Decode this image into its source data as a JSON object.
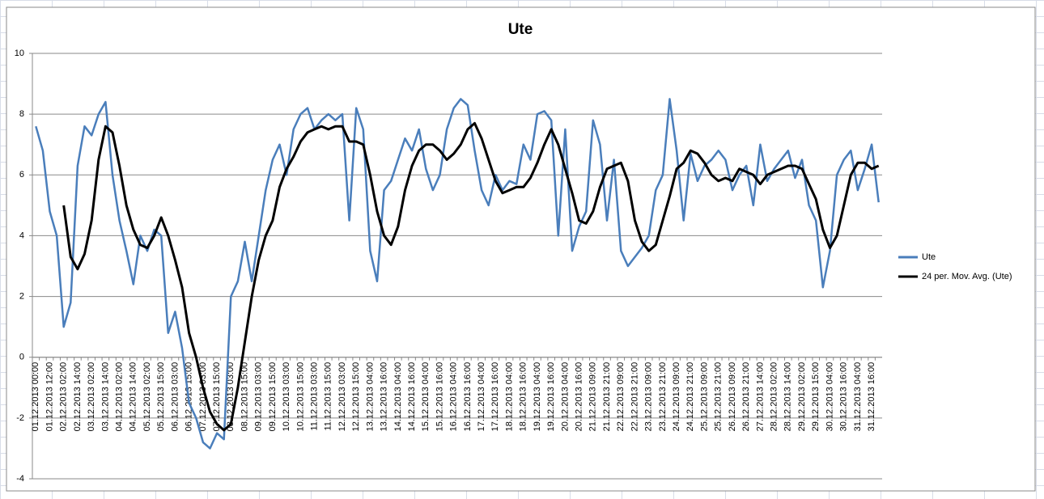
{
  "chart_data": {
    "type": "line",
    "title": "Ute",
    "categories": [
      "01.12.2013 00:00",
      null,
      "01.12.2013 12:00",
      null,
      "02.12.2013 02:00",
      null,
      "02.12.2013 14:00",
      null,
      "03.12.2013 02:00",
      null,
      "03.12.2013 14:00",
      null,
      "04.12.2013 02:00",
      null,
      "04.12.2013 14:00",
      null,
      "05.12.2013 02:00",
      null,
      "05.12.2013 15:00",
      null,
      "06.12.2013 03:00",
      null,
      "06.12.2013 15:00",
      null,
      "07.12.2013 03:00",
      null,
      "07.12.2013 15:00",
      null,
      "08.12.2013 03:00",
      null,
      "08.12.2013 15:00",
      null,
      "09.12.2013 03:00",
      null,
      "09.12.2013 15:00",
      null,
      "10.12.2013 03:00",
      null,
      "10.12.2013 15:00",
      null,
      "11.12.2013 03:00",
      null,
      "11.12.2013 15:00",
      null,
      "12.12.2013 03:00",
      null,
      "12.12.2013 15:00",
      null,
      "13.12.2013 04:00",
      null,
      "13.12.2013 16:00",
      null,
      "14.12.2013 04:00",
      null,
      "14.12.2013 16:00",
      null,
      "15.12.2013 04:00",
      null,
      "15.12.2013 16:00",
      null,
      "16.12.2013 04:00",
      null,
      "16.12.2013 16:00",
      null,
      "17.12.2013 04:00",
      null,
      "17.12.2013 16:00",
      null,
      "18.12.2013 04:00",
      null,
      "18.12.2013 16:00",
      null,
      "19.12.2013 04:00",
      null,
      "19.12.2013 16:00",
      null,
      "20.12.2013 04:00",
      null,
      "20.12.2013 16:00",
      null,
      "21.12.2013 09:00",
      null,
      "21.12.2013 21:00",
      null,
      "22.12.2013 09:00",
      null,
      "22.12.2013 21:00",
      null,
      "23.12.2013 09:00",
      null,
      "23.12.2013 21:00",
      null,
      "24.12.2013 09:00",
      null,
      "24.12.2013 21:00",
      null,
      "25.12.2013 09:00",
      null,
      "25.12.2013 21:00",
      null,
      "26.12.2013 09:00",
      null,
      "26.12.2013 21:00",
      null,
      "27.12.2013 14:00",
      null,
      "28.12.2013 02:00",
      null,
      "28.12.2013 14:00",
      null,
      "29.12.2013 02:00",
      null,
      "29.12.2013 15:00",
      null,
      "30.12.2013 04:00",
      null,
      "30.12.2013 16:00",
      null,
      "31.12.2013 04:00",
      null,
      "31.12.2013 16:00",
      null
    ],
    "series": [
      {
        "name": "Ute",
        "color": "#4a7ebb",
        "values": [
          7.6,
          6.8,
          4.8,
          4.0,
          1.0,
          1.8,
          6.3,
          7.6,
          7.3,
          8.0,
          8.4,
          6.0,
          4.5,
          3.5,
          2.4,
          4.0,
          3.5,
          4.2,
          4.0,
          0.8,
          1.5,
          0.3,
          -1.5,
          -2.0,
          -2.8,
          -3.0,
          -2.5,
          -2.7,
          2.0,
          2.5,
          3.8,
          2.5,
          4.0,
          5.5,
          6.5,
          7.0,
          6.0,
          7.5,
          8.0,
          8.2,
          7.5,
          7.8,
          8.0,
          7.8,
          8.0,
          4.5,
          8.2,
          7.5,
          3.5,
          2.5,
          5.5,
          5.8,
          6.5,
          7.2,
          6.8,
          7.5,
          6.2,
          5.5,
          6.0,
          7.5,
          8.2,
          8.5,
          8.3,
          6.8,
          5.5,
          5.0,
          6.0,
          5.5,
          5.8,
          5.7,
          7.0,
          6.5,
          8.0,
          8.1,
          7.8,
          4.0,
          7.5,
          3.5,
          4.3,
          4.8,
          7.8,
          7.0,
          4.5,
          6.5,
          3.5,
          3.0,
          3.3,
          3.6,
          4.0,
          5.5,
          6.0,
          8.5,
          6.8,
          4.5,
          6.7,
          5.8,
          6.3,
          6.5,
          6.8,
          6.5,
          5.5,
          6.0,
          6.3,
          5.0,
          7.0,
          5.8,
          6.2,
          6.5,
          6.8,
          5.9,
          6.5,
          5.0,
          4.5,
          2.3,
          3.5,
          6.0,
          6.5,
          6.8,
          5.5,
          6.2,
          7.0,
          5.1
        ]
      },
      {
        "name": "24 per. Mov. Avg. (Ute)",
        "color": "#000000",
        "values": [
          null,
          null,
          null,
          null,
          5.0,
          3.3,
          2.9,
          3.4,
          4.5,
          6.5,
          7.6,
          7.4,
          6.3,
          5.0,
          4.2,
          3.7,
          3.6,
          4.0,
          4.6,
          4.0,
          3.2,
          2.3,
          0.8,
          0.0,
          -1.0,
          -1.8,
          -2.2,
          -2.4,
          -2.2,
          -1.0,
          0.5,
          2.0,
          3.2,
          4.0,
          4.5,
          5.6,
          6.2,
          6.6,
          7.1,
          7.4,
          7.5,
          7.6,
          7.5,
          7.6,
          7.6,
          7.1,
          7.1,
          7.0,
          6.0,
          4.8,
          4.0,
          3.7,
          4.3,
          5.5,
          6.3,
          6.8,
          7.0,
          7.0,
          6.8,
          6.5,
          6.7,
          7.0,
          7.5,
          7.7,
          7.2,
          6.5,
          5.8,
          5.4,
          5.5,
          5.6,
          5.6,
          5.9,
          6.4,
          7.0,
          7.5,
          7.0,
          6.2,
          5.4,
          4.5,
          4.4,
          4.8,
          5.6,
          6.2,
          6.3,
          6.4,
          5.8,
          4.5,
          3.8,
          3.5,
          3.7,
          4.5,
          5.3,
          6.2,
          6.4,
          6.8,
          6.7,
          6.4,
          6.0,
          5.8,
          5.9,
          5.8,
          6.2,
          6.1,
          6.0,
          5.7,
          6.0,
          6.1,
          6.2,
          6.3,
          6.3,
          6.2,
          5.7,
          5.2,
          4.2,
          3.6,
          4.0,
          5.0,
          6.0,
          6.4,
          6.4,
          6.2,
          6.3
        ]
      }
    ],
    "ylim": [
      -4,
      10
    ],
    "yticks": [
      -4,
      -2,
      0,
      2,
      4,
      6,
      8,
      10
    ],
    "grid": true,
    "legend": "right"
  }
}
